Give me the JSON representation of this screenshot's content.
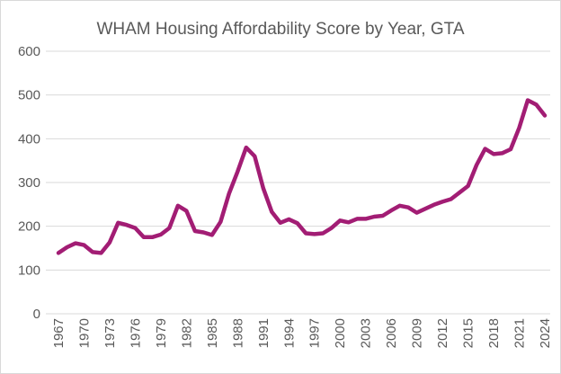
{
  "chart_data": {
    "type": "line",
    "title": "WHAM Housing Affordability Score by Year, GTA",
    "xlabel": "",
    "ylabel": "",
    "ylim": [
      0,
      600
    ],
    "yticks": [
      0,
      100,
      200,
      300,
      400,
      500,
      600
    ],
    "grid": true,
    "line_color": "#a21d74",
    "x_tick_labels": [
      "1967",
      "1970",
      "1973",
      "1976",
      "1979",
      "1982",
      "1985",
      "1988",
      "1991",
      "1994",
      "1997",
      "2000",
      "2003",
      "2006",
      "2009",
      "2012",
      "2015",
      "2018",
      "2021",
      "2024"
    ],
    "x": [
      1967,
      1968,
      1969,
      1970,
      1971,
      1972,
      1973,
      1974,
      1975,
      1976,
      1977,
      1978,
      1979,
      1980,
      1981,
      1982,
      1983,
      1984,
      1985,
      1986,
      1987,
      1988,
      1989,
      1990,
      1991,
      1992,
      1993,
      1994,
      1995,
      1996,
      1997,
      1998,
      1999,
      2000,
      2001,
      2002,
      2003,
      2004,
      2005,
      2006,
      2007,
      2008,
      2009,
      2010,
      2011,
      2012,
      2013,
      2014,
      2015,
      2016,
      2017,
      2018,
      2019,
      2020,
      2021,
      2022,
      2023,
      2024
    ],
    "series": [
      {
        "name": "WHAM Housing Affordability Score",
        "values": [
          139,
          152,
          161,
          157,
          141,
          139,
          163,
          208,
          203,
          196,
          175,
          175,
          181,
          196,
          247,
          235,
          189,
          186,
          180,
          210,
          275,
          325,
          380,
          360,
          287,
          233,
          208,
          216,
          207,
          184,
          182,
          184,
          196,
          213,
          209,
          217,
          217,
          222,
          224,
          236,
          247,
          243,
          231,
          240,
          249,
          256,
          262,
          277,
          292,
          340,
          377,
          365,
          367,
          376,
          425,
          488,
          478,
          453
        ]
      }
    ]
  }
}
